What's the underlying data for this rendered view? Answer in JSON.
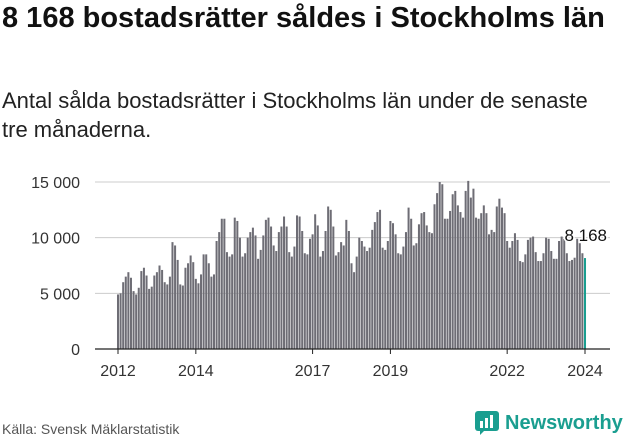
{
  "header": {
    "title": "8 168 bostadsrätter såldes i Stockholms län",
    "subtitle": "Antal sålda bostadsrätter i Stockholms län under de senaste tre månaderna."
  },
  "footer": {
    "source": "Källa: Svensk Mäklarstatistik",
    "brand": "Newsworthy"
  },
  "colors": {
    "bar": "#6e6d75",
    "highlight": "#1a9e90",
    "grid": "#cccccc",
    "axis": "#222222"
  },
  "chart_data": {
    "type": "bar",
    "title": "8 168 bostadsrätter såldes i Stockholms län",
    "xlabel": "",
    "ylabel": "",
    "ylim": [
      0,
      15000
    ],
    "y_ticks": [
      0,
      5000,
      10000,
      15000
    ],
    "y_tick_labels": [
      "0",
      "5 000",
      "10 000",
      "15 000"
    ],
    "x_ticks": [
      2012,
      2014,
      2017,
      2019,
      2022,
      2024
    ],
    "x_tick_labels": [
      "2012",
      "2014",
      "2017",
      "2019",
      "2022",
      "2024"
    ],
    "x_start": 2012.0,
    "x_end": 2024.0,
    "highlight_label": "8 168",
    "values": [
      4900,
      5000,
      6000,
      6500,
      6900,
      6400,
      5200,
      4900,
      5500,
      7000,
      7300,
      6600,
      5400,
      5600,
      6600,
      6900,
      7500,
      7100,
      6000,
      5800,
      6500,
      9600,
      9300,
      8000,
      5800,
      5700,
      7300,
      7700,
      8400,
      7800,
      6300,
      5900,
      6700,
      8500,
      8500,
      7700,
      6500,
      6700,
      9700,
      10500,
      11700,
      11700,
      8700,
      8300,
      8500,
      11800,
      11500,
      10000,
      8300,
      8600,
      10000,
      10500,
      10900,
      10200,
      8100,
      8900,
      10200,
      11600,
      11800,
      11000,
      9300,
      8800,
      10500,
      11000,
      11900,
      11000,
      8700,
      8300,
      9200,
      12000,
      11900,
      10600,
      8600,
      8500,
      9900,
      10300,
      12100,
      11100,
      8300,
      8800,
      10600,
      12800,
      12500,
      11000,
      8400,
      8700,
      9600,
      9300,
      11600,
      10600,
      7700,
      6900,
      8300,
      10000,
      9700,
      9200,
      8800,
      9100,
      10700,
      11400,
      12300,
      12500,
      9100,
      8900,
      9700,
      11500,
      11300,
      10300,
      8600,
      8500,
      9200,
      10500,
      12700,
      11700,
      9300,
      9500,
      11200,
      12200,
      12300,
      11100,
      10500,
      10400,
      13000,
      14000,
      15000,
      14800,
      11700,
      11700,
      12400,
      13900,
      14200,
      12900,
      12300,
      11800,
      14200,
      15100,
      13600,
      14400,
      11800,
      11700,
      12200,
      12900,
      12200,
      10300,
      10700,
      10500,
      12800,
      13500,
      12700,
      12200,
      9700,
      9100,
      9700,
      10400,
      9800,
      7900,
      7800,
      8500,
      9800,
      10000,
      10100,
      8700,
      7900,
      7900,
      8600,
      10000,
      9900,
      8800,
      8100,
      8100,
      9700,
      10100,
      9900,
      8600,
      7900,
      8000,
      8200,
      9900,
      9500,
      8600,
      8168
    ]
  }
}
